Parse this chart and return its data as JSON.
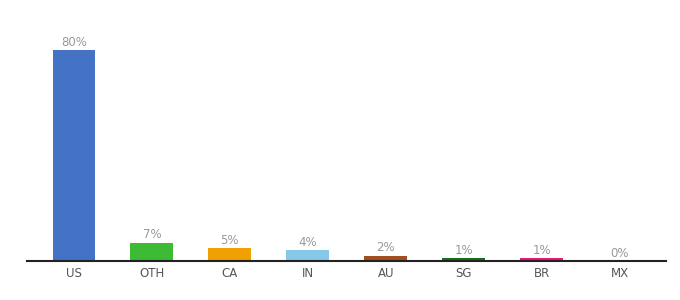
{
  "categories": [
    "US",
    "OTH",
    "CA",
    "IN",
    "AU",
    "SG",
    "BR",
    "MX"
  ],
  "values": [
    80,
    7,
    5,
    4,
    2,
    1,
    1,
    0
  ],
  "labels": [
    "80%",
    "7%",
    "5%",
    "4%",
    "2%",
    "1%",
    "1%",
    "0%"
  ],
  "colors": [
    "#4472c4",
    "#3dbb35",
    "#f0a000",
    "#85c8e8",
    "#a05020",
    "#1a6e1a",
    "#e8197a",
    "#aaaaaa"
  ],
  "background_color": "#ffffff",
  "label_fontsize": 8.5,
  "tick_fontsize": 8.5,
  "label_color": "#999999"
}
